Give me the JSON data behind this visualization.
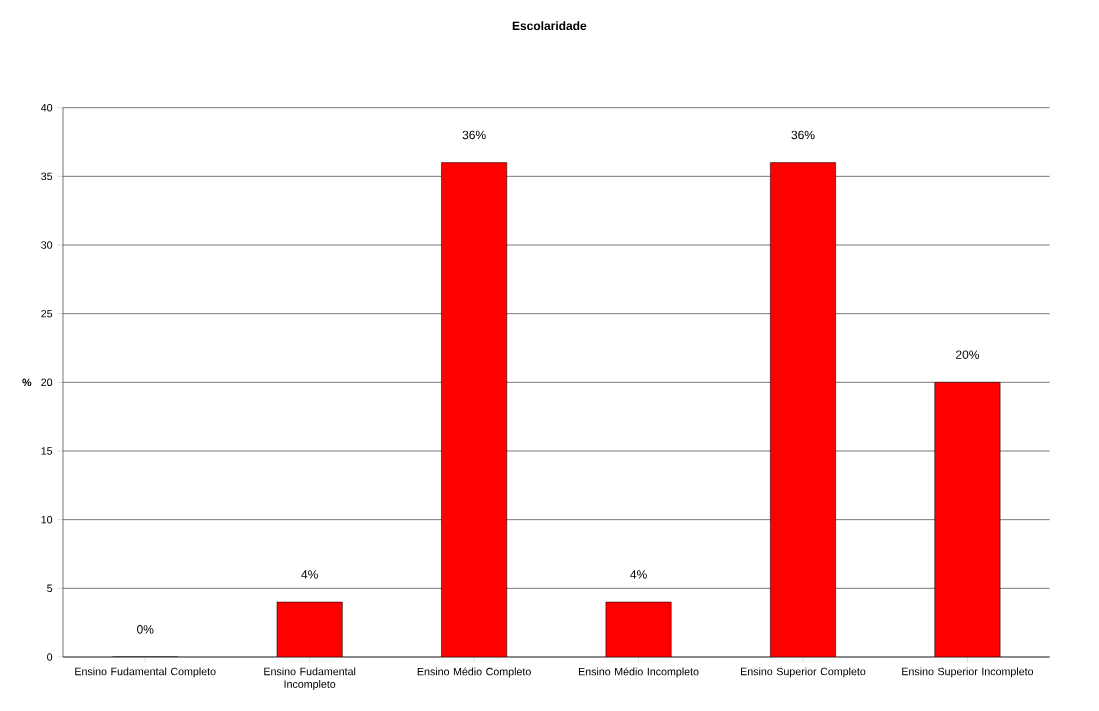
{
  "chart_data": {
    "type": "bar",
    "title": "Escolaridade",
    "ylabel": "%",
    "categories": [
      "Ensino Fudamental Completo",
      "Ensino Fudamental Incompleto",
      "Ensino Médio Completo",
      "Ensino Médio Incompleto",
      "Ensino Superior Completo",
      "Ensino Superior Incompleto"
    ],
    "values": [
      0,
      4,
      36,
      4,
      36,
      20
    ],
    "value_labels": [
      "0%",
      "4%",
      "36%",
      "4%",
      "36%",
      "20%"
    ],
    "color": "#ff0000",
    "ylim": [
      0,
      40
    ],
    "yticks": [
      0,
      5,
      10,
      15,
      20,
      25,
      30,
      35,
      40
    ],
    "grid": "y"
  }
}
